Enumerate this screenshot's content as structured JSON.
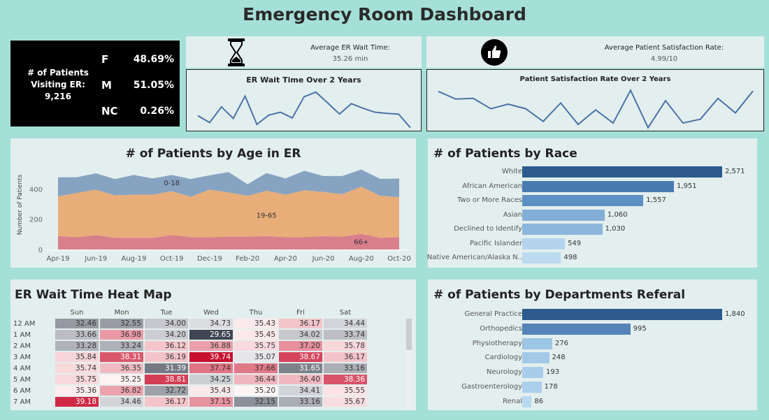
{
  "title": "Emergency Room Dashboard",
  "kpi": {
    "label": "# of Patients Visiting ER:",
    "total": "9,216",
    "genders": [
      {
        "g": "F",
        "pct": "48.69%"
      },
      {
        "g": "M",
        "pct": "51.05%"
      },
      {
        "g": "NC",
        "pct": "0.26%"
      }
    ]
  },
  "wait": {
    "icon": "hourglass-icon",
    "label": "Average ER Wait Time:",
    "value": "35.26 min",
    "chart_title": "ER Wait Time Over 2 Years",
    "series": [
      50,
      20,
      88,
      38,
      135,
      12,
      52,
      65,
      40,
      132,
      152,
      105,
      57,
      102,
      82,
      65,
      60,
      57,
      -2
    ]
  },
  "satisfaction": {
    "icon": "thumbs-up-icon",
    "label": "Average Patient Satisfaction Rate:",
    "value": "4.99/10",
    "chart_title": "Patient Satisfaction Rate Over 2 Years",
    "series": [
      155,
      122,
      125,
      80,
      100,
      80,
      25,
      105,
      12,
      75,
      18,
      160,
      -2,
      115,
      18,
      35,
      125,
      62,
      157
    ]
  },
  "chart_data": [
    {
      "type": "area",
      "title": "# of Patients by Age in ER",
      "ylabel": "Number of Patients",
      "ylim": [
        0,
        540
      ],
      "yticks": [
        0,
        200,
        400
      ],
      "x": [
        "Apr-19",
        "May-19",
        "Jun-19",
        "Jul-19",
        "Aug-19",
        "Sep-19",
        "Oct-19",
        "Nov-19",
        "Dec-19",
        "Jan-20",
        "Feb-20",
        "Mar-20",
        "Apr-20",
        "May-20",
        "Jun-20",
        "Jul-20",
        "Aug-20",
        "Sep-20",
        "Oct-20"
      ],
      "xticks": [
        "Apr-19",
        "Jun-19",
        "Aug-19",
        "Oct-19",
        "Dec-19",
        "Feb-20",
        "Apr-20",
        "Jun-20",
        "Aug-20",
        "Oct-20"
      ],
      "series": [
        {
          "name": "66+",
          "color": "#d97f8c",
          "values": [
            89,
            82,
            95,
            77,
            77,
            77,
            95,
            82,
            82,
            85,
            85,
            88,
            82,
            82,
            89,
            85,
            103,
            77,
            82
          ]
        },
        {
          "name": "19-65",
          "color": "#e8ad78",
          "values": [
            262,
            292,
            300,
            280,
            285,
            285,
            290,
            266,
            313,
            292,
            269,
            300,
            280,
            309,
            291,
            280,
            312,
            277,
            264
          ]
        },
        {
          "name": "0-18",
          "color": "#87a3c2",
          "values": [
            126,
            103,
            108,
            108,
            130,
            107,
            107,
            117,
            95,
            134,
            77,
            117,
            107,
            129,
            105,
            120,
            113,
            112,
            123
          ]
        }
      ]
    },
    {
      "type": "bar",
      "title": "# of Patients by Race",
      "categories": [
        "White",
        "African American",
        "Two or More Races",
        "Asian",
        "Declined to Identify",
        "Pacific Islander",
        "Native American/Alaska N.."
      ],
      "values": [
        2571,
        1951,
        1557,
        1060,
        1030,
        549,
        498
      ],
      "labels": [
        "2,571",
        "1,951",
        "1,557",
        "1,060",
        "1,030",
        "549",
        "498"
      ]
    },
    {
      "type": "bar",
      "title": "# of Patients by Departments Referal",
      "categories": [
        "General Practice",
        "Orthopedics",
        "Physiotherapy",
        "Cardiology",
        "Neurology",
        "Gastroenterology",
        "Renal"
      ],
      "values": [
        1840,
        995,
        276,
        248,
        193,
        178,
        86
      ],
      "labels": [
        "1,840",
        "995",
        "276",
        "248",
        "193",
        "178",
        "86"
      ]
    },
    {
      "type": "heatmap",
      "title": "ER Wait Time Heat Map",
      "columns": [
        "Sun",
        "Mon",
        "Tue",
        "Wed",
        "Thu",
        "Fri",
        "Sat"
      ],
      "rows": [
        "12 AM",
        "1 AM",
        "2 AM",
        "3 AM",
        "4 AM",
        "5 AM",
        "6 AM",
        "7 AM"
      ],
      "values": [
        [
          "32.46",
          "32.55",
          "34.00",
          "34.73",
          "35.43",
          "36.17",
          "34.44"
        ],
        [
          "33.66",
          "36.98",
          "34.20",
          "29.65",
          "35.45",
          "34.02",
          "33.74"
        ],
        [
          "33.28",
          "33.24",
          "36.12",
          "36.88",
          "35.75",
          "37.20",
          "35.78"
        ],
        [
          "35.84",
          "38.31",
          "36.19",
          "39.74",
          "35.07",
          "38.67",
          "36.17"
        ],
        [
          "35.74",
          "36.35",
          "31.39",
          "37.74",
          "37.66",
          "31.65",
          "33.16"
        ],
        [
          "35.75",
          "35.25",
          "38.81",
          "34.25",
          "36.44",
          "36.40",
          "38.36"
        ],
        [
          "35.36",
          "36.82",
          "32.72",
          "35.43",
          "35.20",
          "34.41",
          "35.55"
        ],
        [
          "39.18",
          "34.46",
          "36.17",
          "37.15",
          "32.15",
          "33.16",
          "35.67"
        ]
      ]
    }
  ]
}
